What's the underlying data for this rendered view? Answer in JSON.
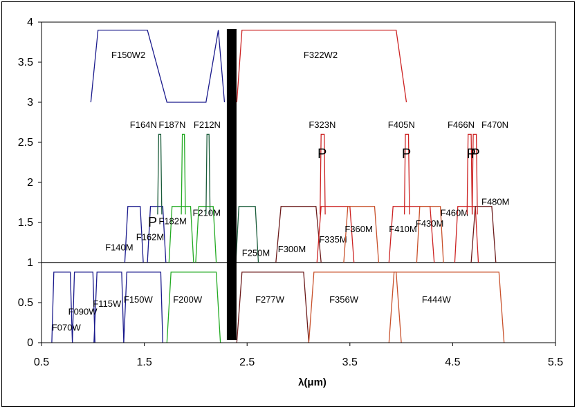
{
  "chart_data": {
    "type": "line",
    "title": "",
    "xlabel": "λ(μm)",
    "ylabel": "",
    "xlim": [
      0.5,
      5.5
    ],
    "ylim": [
      0,
      4
    ],
    "x_ticks": [
      "0.5",
      "1.5",
      "2.5",
      "3.5",
      "4.5",
      "5.5"
    ],
    "y_ticks": [
      "0",
      "0.5",
      "1",
      "1.5",
      "2",
      "2.5",
      "3",
      "3.5",
      "4"
    ],
    "grid": false,
    "legend": "none",
    "reference_line_y": 1,
    "divider_x": 2.35,
    "colors": {
      "blue": "#1a1a8c",
      "green": "#22aa22",
      "darkgreen": "#1a5c3a",
      "red": "#cc2222",
      "darkred": "#6b1a1a",
      "orange": "#c8502a",
      "black": "#000000"
    },
    "filters": [
      {
        "name": "F070W",
        "color": "blue",
        "x": [
          0.6,
          0.62,
          0.78,
          0.8
        ],
        "y": [
          0,
          0.88,
          0.88,
          0
        ],
        "label_x": 0.6,
        "label_y": 0.15
      },
      {
        "name": "F090W",
        "color": "blue",
        "x": [
          0.8,
          0.82,
          1.0,
          1.02
        ],
        "y": [
          0,
          0.88,
          0.88,
          0
        ],
        "label_x": 0.76,
        "label_y": 0.35
      },
      {
        "name": "F115W",
        "color": "blue",
        "x": [
          1.01,
          1.04,
          1.28,
          1.3
        ],
        "y": [
          0,
          0.88,
          0.88,
          0
        ],
        "label_x": 1.0,
        "label_y": 0.45
      },
      {
        "name": "F150W",
        "color": "blue",
        "x": [
          1.3,
          1.33,
          1.66,
          1.68
        ],
        "y": [
          0,
          0.88,
          0.88,
          0
        ],
        "label_x": 1.3,
        "label_y": 0.5
      },
      {
        "name": "F200W",
        "color": "green",
        "x": [
          1.72,
          1.76,
          2.2,
          2.24
        ],
        "y": [
          0,
          0.88,
          0.88,
          0
        ],
        "label_x": 1.78,
        "label_y": 0.5
      },
      {
        "name": "F277W",
        "color": "darkred",
        "x": [
          2.4,
          2.45,
          3.05,
          3.1
        ],
        "y": [
          0,
          0.88,
          0.88,
          0
        ],
        "label_x": 2.58,
        "label_y": 0.5
      },
      {
        "name": "F356W",
        "color": "orange",
        "x": [
          3.1,
          3.15,
          3.95,
          4.0
        ],
        "y": [
          0,
          0.88,
          0.88,
          0
        ],
        "label_x": 3.3,
        "label_y": 0.5
      },
      {
        "name": "F444W",
        "color": "orange",
        "x": [
          3.88,
          3.93,
          4.95,
          5.0
        ],
        "y": [
          0,
          0.88,
          0.88,
          0
        ],
        "label_x": 4.2,
        "label_y": 0.5
      },
      {
        "name": "F140M",
        "color": "blue",
        "x": [
          1.31,
          1.34,
          1.46,
          1.49
        ],
        "y": [
          1,
          1.7,
          1.7,
          1
        ],
        "label_x": 1.12,
        "label_y": 1.15
      },
      {
        "name": "F162M",
        "color": "blue",
        "x": [
          1.53,
          1.56,
          1.68,
          1.71
        ],
        "y": [
          1,
          1.7,
          1.7,
          1
        ],
        "label_x": 1.42,
        "label_y": 1.28
      },
      {
        "name": "F182M",
        "color": "green",
        "x": [
          1.74,
          1.77,
          1.95,
          1.98
        ],
        "y": [
          1,
          1.7,
          1.7,
          1
        ],
        "label_x": 1.64,
        "label_y": 1.48
      },
      {
        "name": "F210M",
        "color": "green",
        "x": [
          2.0,
          2.03,
          2.17,
          2.2
        ],
        "y": [
          1,
          1.7,
          1.7,
          1
        ],
        "label_x": 1.97,
        "label_y": 1.58
      },
      {
        "name": "F250M",
        "color": "darkgreen",
        "x": [
          2.39,
          2.42,
          2.58,
          2.61
        ],
        "y": [
          1,
          1.7,
          1.7,
          1
        ],
        "label_x": 2.45,
        "label_y": 1.08
      },
      {
        "name": "F300M",
        "color": "darkred",
        "x": [
          2.78,
          2.83,
          3.17,
          3.22
        ],
        "y": [
          1,
          1.7,
          1.7,
          1
        ],
        "label_x": 2.8,
        "label_y": 1.13
      },
      {
        "name": "F335M",
        "color": "red",
        "x": [
          3.18,
          3.22,
          3.5,
          3.54
        ],
        "y": [
          1,
          1.7,
          1.7,
          1
        ],
        "label_x": 3.2,
        "label_y": 1.25
      },
      {
        "name": "F360M",
        "color": "orange",
        "x": [
          3.44,
          3.48,
          3.74,
          3.78
        ],
        "y": [
          1,
          1.7,
          1.7,
          1
        ],
        "label_x": 3.45,
        "label_y": 1.38
      },
      {
        "name": "F410M",
        "color": "red",
        "x": [
          3.88,
          3.92,
          4.28,
          4.32
        ],
        "y": [
          1,
          1.7,
          1.7,
          1
        ],
        "label_x": 3.88,
        "label_y": 1.38
      },
      {
        "name": "F430M",
        "color": "orange",
        "x": [
          4.15,
          4.18,
          4.38,
          4.41
        ],
        "y": [
          1,
          1.7,
          1.7,
          1
        ],
        "label_x": 4.14,
        "label_y": 1.45
      },
      {
        "name": "F460M",
        "color": "red",
        "x": [
          4.52,
          4.55,
          4.72,
          4.75
        ],
        "y": [
          1,
          1.7,
          1.7,
          1
        ],
        "label_x": 4.38,
        "label_y": 1.58
      },
      {
        "name": "F480M",
        "color": "darkred",
        "x": [
          4.68,
          4.72,
          4.88,
          4.92
        ],
        "y": [
          1,
          1.7,
          1.7,
          1
        ],
        "label_x": 4.78,
        "label_y": 1.72
      },
      {
        "name": "F164N",
        "color": "darkgreen",
        "x": [
          1.63,
          1.64,
          1.66,
          1.67
        ],
        "y": [
          1.6,
          2.6,
          2.6,
          1.6
        ],
        "label_x": 1.36,
        "label_y": 2.68
      },
      {
        "name": "F187N",
        "color": "green",
        "x": [
          1.86,
          1.87,
          1.89,
          1.9
        ],
        "y": [
          1.6,
          2.6,
          2.6,
          1.6
        ],
        "label_x": 1.64,
        "label_y": 2.68
      },
      {
        "name": "F212N",
        "color": "darkgreen",
        "x": [
          2.1,
          2.11,
          2.13,
          2.14
        ],
        "y": [
          1.6,
          2.6,
          2.6,
          1.6
        ],
        "label_x": 1.98,
        "label_y": 2.68
      },
      {
        "name": "F323N",
        "color": "red",
        "x": [
          3.21,
          3.22,
          3.25,
          3.26
        ],
        "y": [
          1.6,
          2.6,
          2.6,
          1.6
        ],
        "label_x": 3.1,
        "label_y": 2.68
      },
      {
        "name": "F405N",
        "color": "red",
        "x": [
          4.03,
          4.04,
          4.07,
          4.08
        ],
        "y": [
          1.6,
          2.6,
          2.6,
          1.6
        ],
        "label_x": 3.87,
        "label_y": 2.68
      },
      {
        "name": "F466N",
        "color": "red",
        "x": [
          4.64,
          4.65,
          4.68,
          4.69
        ],
        "y": [
          1.6,
          2.6,
          2.6,
          1.6
        ],
        "label_x": 4.45,
        "label_y": 2.68
      },
      {
        "name": "F470N",
        "color": "red",
        "x": [
          4.69,
          4.7,
          4.73,
          4.74
        ],
        "y": [
          1.6,
          2.6,
          2.6,
          1.6
        ],
        "label_x": 4.78,
        "label_y": 2.68
      },
      {
        "name": "F150W2",
        "color": "blue",
        "x": [
          0.98,
          1.05,
          1.53,
          1.72,
          2.1,
          2.22,
          2.28
        ],
        "y": [
          3,
          3.9,
          3.9,
          3,
          3,
          3.9,
          3
        ],
        "label_x": 1.18,
        "label_y": 3.55
      },
      {
        "name": "F322W2",
        "color": "red",
        "x": [
          2.4,
          2.45,
          3.95,
          4.05
        ],
        "y": [
          3,
          3.9,
          3.9,
          3
        ],
        "label_x": 3.05,
        "label_y": 3.55
      }
    ],
    "p_markers": [
      {
        "label": "P",
        "x": 1.58,
        "y": 1.45
      },
      {
        "label": "P",
        "x": 3.23,
        "y": 2.3
      },
      {
        "label": "P",
        "x": 4.05,
        "y": 2.3
      },
      {
        "label": "P",
        "x": 4.68,
        "y": 2.3
      },
      {
        "label": "P",
        "x": 4.72,
        "y": 2.3
      }
    ]
  }
}
